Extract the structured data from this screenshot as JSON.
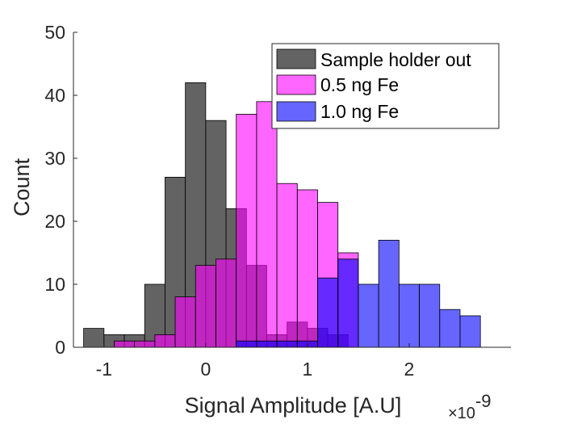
{
  "chart_data": {
    "type": "bar",
    "subtype": "overlaid-histogram",
    "xlabel": "Signal Amplitude [A.U]",
    "ylabel": "Count",
    "x_exponent": {
      "base": "×10",
      "power": "-9"
    },
    "xlim": [
      -1.3,
      3.0
    ],
    "ylim": [
      0,
      50
    ],
    "xticks": [
      -1,
      0,
      1,
      2
    ],
    "xtick_labels": [
      "-1",
      "0",
      "1",
      "2"
    ],
    "yticks": [
      0,
      10,
      20,
      30,
      40,
      50
    ],
    "ytick_labels": [
      "0",
      "10",
      "20",
      "30",
      "40",
      "50"
    ],
    "grid": false,
    "legend_position": "top-right",
    "series": [
      {
        "name": "Sample holder out",
        "color": "#3c3c3c",
        "opacity": 0.8,
        "bin_edges": [
          -1.2,
          -1.0,
          -0.8,
          -0.6,
          -0.4,
          -0.2,
          0.0,
          0.2,
          0.4,
          0.6,
          0.8,
          1.0,
          1.2,
          1.4
        ],
        "counts": [
          3,
          2,
          2,
          10,
          27,
          42,
          36,
          22,
          13,
          2,
          4,
          3,
          2
        ]
      },
      {
        "name": "0.5 ng Fe",
        "color": "#ff00ff",
        "opacity": 0.6,
        "bin_edges": [
          -0.9,
          -0.7,
          -0.5,
          -0.3,
          -0.1,
          0.1,
          0.3,
          0.5,
          0.7,
          0.9,
          1.1,
          1.3,
          1.5
        ],
        "counts": [
          1,
          1,
          2,
          8,
          13,
          14,
          37,
          39,
          26,
          25,
          23,
          15
        ]
      },
      {
        "name": "1.0 ng Fe",
        "color": "#0000ff",
        "opacity": 0.6,
        "bin_edges": [
          0.3,
          0.5,
          0.7,
          0.9,
          1.1,
          1.3,
          1.5,
          1.7,
          1.9,
          2.1,
          2.3,
          2.5,
          2.7
        ],
        "counts": [
          1,
          1,
          1,
          1,
          11,
          14,
          10,
          17,
          10,
          10,
          6,
          5
        ]
      }
    ]
  }
}
